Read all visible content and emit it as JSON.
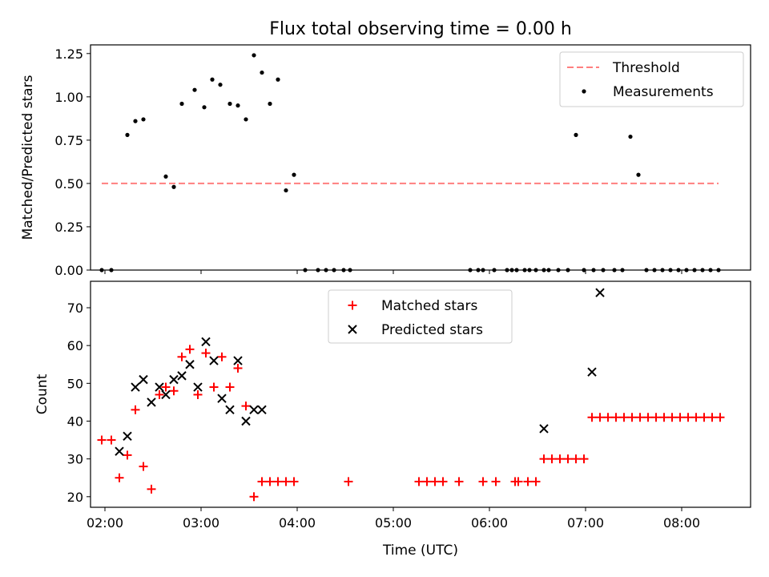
{
  "title": "Flux total observing time = 0.00 h",
  "xlabel": "Time (UTC)",
  "chart_data": [
    {
      "type": "scatter",
      "ylabel": "Matched/Predicted stars",
      "xlim": [
        "01:51",
        "08:43"
      ],
      "ylim": [
        0,
        1.3
      ],
      "yticks": [
        "0.00",
        "0.25",
        "0.50",
        "0.75",
        "1.00",
        "1.25"
      ],
      "legend": "top-right",
      "series": [
        {
          "name": "Threshold",
          "style": "dashed-line",
          "color": "#ff7f7f",
          "x": [
            "01:58",
            "08:23"
          ],
          "y": [
            0.5,
            0.5
          ]
        },
        {
          "name": "Measurements",
          "style": "dot",
          "color": "#000000",
          "x": [
            "01:58",
            "02:04",
            "02:14",
            "02:19",
            "02:24",
            "02:38",
            "02:43",
            "02:48",
            "02:56",
            "03:02",
            "03:07",
            "03:12",
            "03:18",
            "03:23",
            "03:28",
            "03:33",
            "03:38",
            "03:43",
            "03:48",
            "03:53",
            "03:58",
            "04:05",
            "04:13",
            "04:18",
            "04:23",
            "04:29",
            "04:33",
            "05:48",
            "05:53",
            "05:56",
            "06:03",
            "06:11",
            "06:14",
            "06:17",
            "06:22",
            "06:25",
            "06:29",
            "06:34",
            "06:37",
            "06:43",
            "06:49",
            "06:54",
            "06:59",
            "07:05",
            "07:11",
            "07:18",
            "07:23",
            "07:28",
            "07:33",
            "07:38",
            "07:43",
            "07:48",
            "07:53",
            "07:58",
            "08:03",
            "08:08",
            "08:13",
            "08:18",
            "08:23"
          ],
          "y": [
            0.0,
            0.0,
            0.78,
            0.86,
            0.87,
            0.54,
            0.48,
            0.96,
            1.04,
            0.94,
            1.1,
            1.07,
            0.96,
            0.95,
            0.87,
            1.24,
            1.14,
            0.96,
            1.1,
            0.46,
            0.55,
            0.0,
            0.0,
            0.0,
            0.0,
            0.0,
            0.0,
            0.0,
            0.0,
            0.0,
            0.0,
            0.0,
            0.0,
            0.0,
            0.0,
            0.0,
            0.0,
            0.0,
            0.0,
            0.0,
            0.0,
            0.78,
            0.0,
            0.0,
            0.0,
            0.0,
            0.0,
            0.77,
            0.55,
            0.0,
            0.0,
            0.0,
            0.0,
            0.0,
            0.0,
            0.0,
            0.0,
            0.0,
            0.0
          ]
        }
      ]
    },
    {
      "type": "scatter",
      "ylabel": "Count",
      "xlim": [
        "01:51",
        "08:43"
      ],
      "ylim": [
        17.2,
        77.0
      ],
      "yticks": [
        "20",
        "30",
        "40",
        "50",
        "60",
        "70"
      ],
      "xticks": [
        "02:00",
        "03:00",
        "04:00",
        "05:00",
        "06:00",
        "07:00",
        "08:00"
      ],
      "legend": "top-center",
      "series": [
        {
          "name": "Matched stars",
          "style": "plus",
          "color": "#ff0000",
          "x": [
            "01:58",
            "02:04",
            "02:09",
            "02:14",
            "02:19",
            "02:24",
            "02:29",
            "02:34",
            "02:38",
            "02:43",
            "02:48",
            "02:53",
            "02:58",
            "03:03",
            "03:08",
            "03:13",
            "03:18",
            "03:23",
            "03:28",
            "03:33",
            "03:38",
            "03:43",
            "03:48",
            "03:53",
            "03:58",
            "04:32",
            "05:16",
            "05:21",
            "05:26",
            "05:31",
            "05:41",
            "05:56",
            "06:04",
            "06:16",
            "06:18",
            "06:24",
            "06:29",
            "06:34",
            "06:39",
            "06:44",
            "06:49",
            "06:54",
            "06:59",
            "07:04",
            "07:09",
            "07:14",
            "07:19",
            "07:24",
            "07:29",
            "07:34",
            "07:39",
            "07:44",
            "07:49",
            "07:54",
            "07:59",
            "08:04",
            "08:09",
            "08:14",
            "08:19",
            "08:24"
          ],
          "y": [
            35,
            35,
            25,
            31,
            43,
            28,
            22,
            47,
            49,
            48,
            57,
            59,
            47,
            58,
            49,
            57,
            49,
            54,
            44,
            20,
            24,
            24,
            24,
            24,
            24,
            24,
            24,
            24,
            24,
            24,
            24,
            24,
            24,
            24,
            24,
            24,
            24,
            30,
            30,
            30,
            30,
            30,
            30,
            41,
            41,
            41,
            41,
            41,
            41,
            41,
            41,
            41,
            41,
            41,
            41,
            41,
            41,
            41,
            41,
            41
          ]
        },
        {
          "name": "Predicted stars",
          "style": "x",
          "color": "#000000",
          "x": [
            "02:09",
            "02:14",
            "02:19",
            "02:24",
            "02:29",
            "02:34",
            "02:38",
            "02:43",
            "02:48",
            "02:53",
            "02:58",
            "03:03",
            "03:08",
            "03:13",
            "03:18",
            "03:23",
            "03:28",
            "03:33",
            "03:38",
            "06:34",
            "07:04",
            "07:09"
          ],
          "y": [
            32,
            36,
            49,
            51,
            45,
            49,
            47,
            51,
            52,
            55,
            49,
            61,
            56,
            46,
            43,
            56,
            40,
            43,
            43,
            38,
            53,
            74
          ]
        }
      ]
    }
  ]
}
